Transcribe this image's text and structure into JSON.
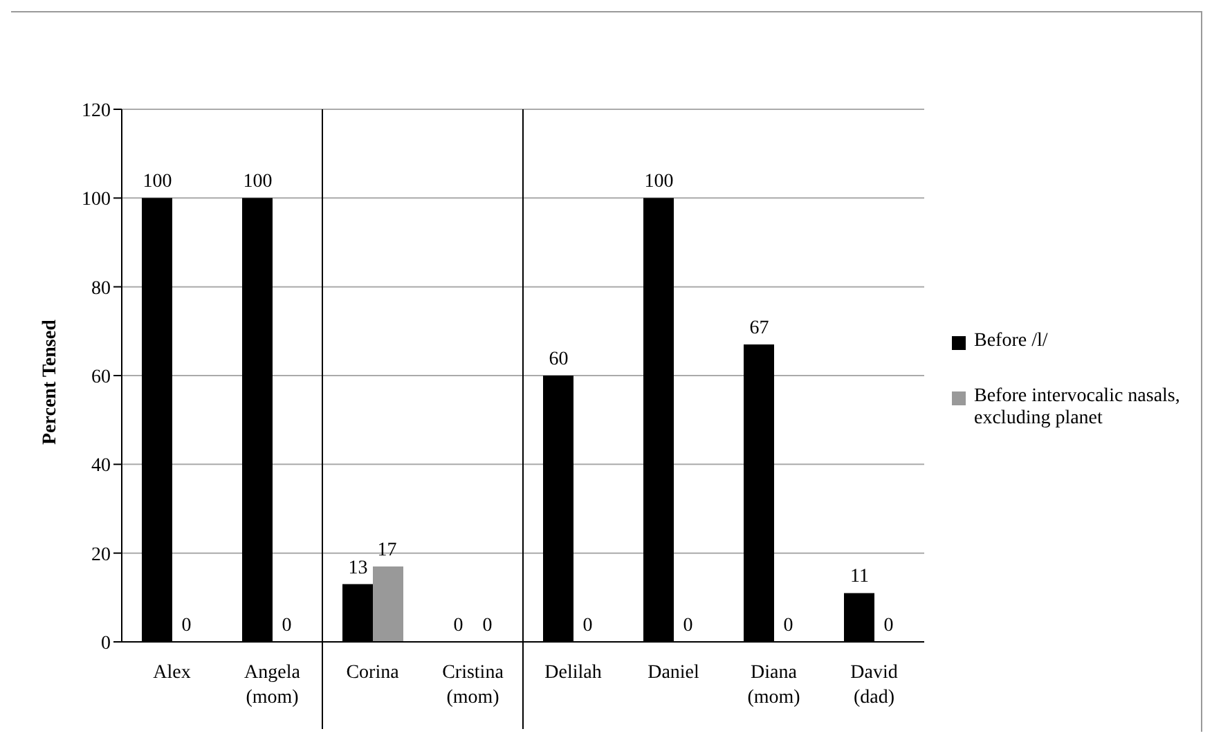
{
  "chart_data": {
    "type": "bar",
    "ylabel": "Percent Tensed",
    "categories": [
      "Alex",
      "Angela\n(mom)",
      "Corina",
      "Cristina\n(mom)",
      "Delilah",
      "Daniel",
      "Diana\n(mom)",
      "David\n(dad)"
    ],
    "series": [
      {
        "name": "Before /l/",
        "color": "#000000",
        "values": [
          100,
          100,
          13,
          0,
          60,
          100,
          67,
          11
        ]
      },
      {
        "name": "Before intervocalic nasals, excluding planet",
        "color": "#999999",
        "values": [
          0,
          0,
          17,
          0,
          0,
          0,
          0,
          0
        ]
      }
    ],
    "ylim": [
      0,
      120
    ],
    "yticks": [
      0,
      20,
      40,
      60,
      80,
      100,
      120
    ],
    "grid": "y",
    "legend": "right",
    "data_labels": true
  }
}
